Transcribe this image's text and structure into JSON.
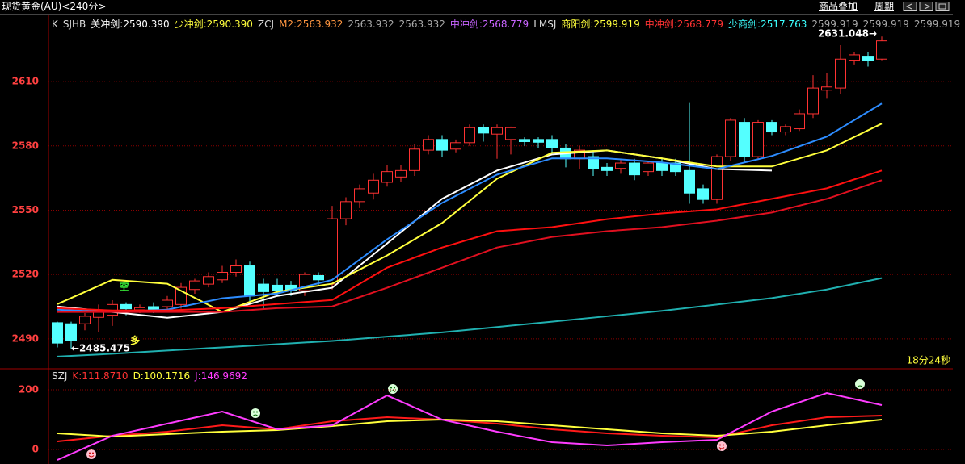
{
  "window": {
    "title": "现货黄金(AU)<240分>",
    "menu": [
      "商品叠加",
      "周期"
    ]
  },
  "chart_data": [
    {
      "type": "candlestick",
      "header": [
        {
          "label": "K",
          "color": "#dddddd"
        },
        {
          "label": "SJHB",
          "color": "#dddddd"
        },
        {
          "label": "关冲剑:2590.390",
          "color": "#ffffff"
        },
        {
          "label": "少冲剑:2590.390",
          "color": "#ffff3c"
        },
        {
          "label": "ZCJ",
          "color": "#dddddd"
        },
        {
          "label": "M2:2563.932",
          "color": "#ff9640"
        },
        {
          "label": "2563.932",
          "color": "#aaaaaa"
        },
        {
          "label": "2563.932",
          "color": "#aaaaaa"
        },
        {
          "label": "中冲剑:2568.779",
          "color": "#c864ff"
        },
        {
          "label": "LMSJ",
          "color": "#dddddd"
        },
        {
          "label": "商阳剑:2599.919",
          "color": "#ffff3c"
        },
        {
          "label": "中冲剑:2568.779",
          "color": "#ff3232"
        },
        {
          "label": "少商剑:2517.763",
          "color": "#3cffff"
        },
        {
          "label": "2599.919",
          "color": "#aaaaaa"
        },
        {
          "label": "2599.919",
          "color": "#aaaaaa"
        },
        {
          "label": "2599.919",
          "color": "#aaaaaa"
        }
      ],
      "open": [
        2497.5,
        2497,
        2497,
        2500,
        2501,
        2506,
        2503.5,
        2505,
        2505,
        2506,
        2513,
        2515.5,
        2517.5,
        2521,
        2524,
        2515.5,
        2515,
        2515,
        2512.5,
        2519.5,
        2515.5,
        2546,
        2554,
        2558,
        2563,
        2565.5,
        2568.5,
        2578,
        2583,
        2578.5,
        2581.5,
        2588.5,
        2585.5,
        2583,
        2583,
        2583,
        2583,
        2579,
        2574,
        2575,
        2570,
        2569.5,
        2572,
        2568,
        2572,
        2572,
        2568.5,
        2560,
        2555,
        2575,
        2591,
        2575,
        2591,
        2586.5,
        2588,
        2595,
        2606,
        2607,
        2620,
        2621.5,
        2620.5
      ],
      "high": [
        2498,
        2498,
        2502,
        2506,
        2508,
        2507,
        2506,
        2507,
        2510,
        2516,
        2518,
        2521,
        2524,
        2527,
        2526,
        2518,
        2518,
        2517,
        2521,
        2521,
        2552,
        2556,
        2562,
        2567,
        2571,
        2571,
        2581,
        2585,
        2585,
        2583,
        2590,
        2590,
        2590,
        2589,
        2584,
        2584,
        2585,
        2581,
        2580,
        2578,
        2572,
        2574,
        2574,
        2573,
        2574,
        2574,
        2600,
        2562,
        2576,
        2593,
        2593,
        2592,
        2592,
        2590,
        2597,
        2613,
        2614,
        2627,
        2624,
        2624,
        2631.048
      ],
      "low": [
        2486,
        2485.475,
        2494,
        2493,
        2496,
        2501,
        2502,
        2502,
        2503,
        2504,
        2511,
        2514,
        2516,
        2519,
        2506,
        2504,
        2510,
        2510,
        2510,
        2515,
        2513,
        2543,
        2551,
        2555,
        2561,
        2563,
        2566,
        2576,
        2575,
        2577,
        2580,
        2582,
        2574,
        2576,
        2580,
        2579,
        2577,
        2570,
        2569,
        2566,
        2566,
        2567,
        2564,
        2566,
        2566,
        2566,
        2553,
        2553,
        2553,
        2573,
        2572,
        2574,
        2585,
        2585,
        2587,
        2593,
        2602,
        2604,
        2618,
        2617,
        2620
      ],
      "close": [
        2488,
        2489,
        2500.5,
        2502.5,
        2506,
        2504,
        2504.5,
        2503.5,
        2508,
        2514,
        2517,
        2519,
        2521,
        2524,
        2510,
        2512,
        2512.5,
        2512.5,
        2520,
        2517.5,
        2546,
        2554,
        2560,
        2564,
        2568,
        2568.5,
        2578.5,
        2583,
        2578,
        2581.5,
        2588.5,
        2586,
        2588.5,
        2588.5,
        2582,
        2581.7,
        2579,
        2574,
        2578,
        2569.5,
        2568.5,
        2572,
        2566.5,
        2572,
        2568.5,
        2568,
        2558,
        2555,
        2575,
        2592,
        2575,
        2591,
        2586.5,
        2589,
        2595,
        2607,
        2607.5,
        2620.5,
        2622.5,
        2620,
        2629
      ],
      "up_color": "#ff3232",
      "down_color": "#54ffff",
      "lines": [
        {
          "color": "#ffffff",
          "x": [
            0,
            4,
            8,
            12,
            16,
            20,
            24,
            28,
            32,
            36,
            40,
            44,
            48,
            52,
            56,
            60
          ],
          "values": [
            2505.1,
            2502.5,
            2499.8,
            2502.5,
            2510,
            2513.8,
            2534.5,
            2555.3,
            2568.5,
            2576,
            2577.9,
            2574.2,
            2569.2,
            2568.5,
            null,
            null
          ]
        },
        {
          "color": "#ffff3c",
          "x": [
            0,
            4,
            8,
            12,
            16,
            20,
            24,
            28,
            32,
            36,
            40,
            44,
            48,
            52,
            56,
            60
          ],
          "values": [
            2506.2,
            2517.5,
            2515.7,
            2502.5,
            2511.9,
            2515.7,
            2528.9,
            2544,
            2564.7,
            2576.8,
            2577.9,
            2574.2,
            2570.4,
            2570.4,
            2577.9,
            2590.4
          ]
        },
        {
          "color": "#2d8cff",
          "x": [
            0,
            4,
            8,
            12,
            16,
            20,
            24,
            28,
            32,
            36,
            40,
            44,
            48,
            52,
            56,
            60
          ],
          "values": [
            2503.6,
            2502.5,
            2503.6,
            2508.9,
            2511.1,
            2517.5,
            2536.4,
            2553.4,
            2566.6,
            2574.2,
            2574.2,
            2572.3,
            2569.2,
            2575.3,
            2584.3,
            2599.8
          ]
        },
        {
          "color": "#ff1010",
          "x": [
            0,
            4,
            8,
            12,
            16,
            20,
            24,
            28,
            32,
            36,
            40,
            44,
            48,
            52,
            56,
            60
          ],
          "values": [
            2504.3,
            2503.2,
            2503.2,
            2504.3,
            2506.2,
            2508.1,
            2523.2,
            2532.6,
            2540.2,
            2542.1,
            2545.8,
            2548.5,
            2550.4,
            2555.3,
            2560.2,
            2568.5
          ]
        },
        {
          "color": "#e01020",
          "x": [
            0,
            4,
            8,
            12,
            16,
            20,
            24,
            28,
            32,
            36,
            40,
            44,
            48,
            52,
            56,
            60
          ],
          "values": [
            2502.5,
            2502.5,
            2502.5,
            2502.5,
            2504.3,
            2505.1,
            2513.8,
            2523.2,
            2532.6,
            2537.5,
            2540.2,
            2542.1,
            2545.1,
            2548.9,
            2555.3,
            2564
          ]
        },
        {
          "color": "#20b0b0",
          "x": [
            0,
            4,
            8,
            12,
            16,
            20,
            24,
            28,
            32,
            36,
            40,
            44,
            48,
            52,
            56,
            60
          ],
          "values": [
            2481.7,
            2483,
            2484.5,
            2486,
            2487.5,
            2489,
            2491,
            2493,
            2495.5,
            2498,
            2500.5,
            2503,
            2506,
            2509,
            2513,
            2518.3
          ]
        }
      ],
      "annotations": [
        {
          "text": "2631.048→",
          "x": 60,
          "y": 2631.048,
          "color": "#ffffff"
        },
        {
          "text": "←2485.475",
          "x": 1,
          "y": 2485.475,
          "color": "#ffffff"
        },
        {
          "text": "空",
          "x": 4.5,
          "y": 2514,
          "color": "#3cff3c"
        },
        {
          "text": "多",
          "x": 5.3,
          "y": 2489,
          "color": "#ffff3c"
        }
      ],
      "timer": "18分24秒",
      "ylim": [
        2476,
        2641.3
      ],
      "yticks": [
        2490,
        2520,
        2550,
        2580,
        2610
      ],
      "grid": true
    },
    {
      "type": "line",
      "header": [
        {
          "label": "SZJ",
          "color": "#dddddd"
        },
        {
          "label": "K:111.8710",
          "color": "#ff3232"
        },
        {
          "label": "D:100.1716",
          "color": "#ffff3c"
        },
        {
          "label": "J:146.9692",
          "color": "#ff3cff"
        }
      ],
      "x": [
        0,
        4,
        8,
        12,
        16,
        20,
        24,
        28,
        32,
        36,
        40,
        44,
        48,
        52,
        56,
        60
      ],
      "series": [
        {
          "color": "#ff1a1a",
          "values": [
            27,
            45.9,
            59.5,
            81.1,
            67.6,
            94.6,
            108.1,
            100,
            86.5,
            67.6,
            54.1,
            45.9,
            40.5,
            81.1,
            108.1,
            113.5
          ]
        },
        {
          "color": "#ffff3c",
          "values": [
            54.1,
            43.2,
            51.4,
            59.5,
            64.9,
            78.4,
            94.6,
            100,
            94.6,
            81.1,
            67.6,
            54.1,
            45.9,
            59.5,
            81.1,
            100
          ]
        },
        {
          "color": "#ff3cff",
          "values": [
            -35.1,
            45.9,
            86.5,
            127,
            67.6,
            81.1,
            181,
            100,
            59.5,
            24.3,
            13.5,
            24.3,
            32.4,
            127,
            189,
            148.6
          ]
        }
      ],
      "ylim": [
        -48.6,
        267.6
      ],
      "yticks": [
        0,
        200
      ],
      "grid": true
    }
  ]
}
